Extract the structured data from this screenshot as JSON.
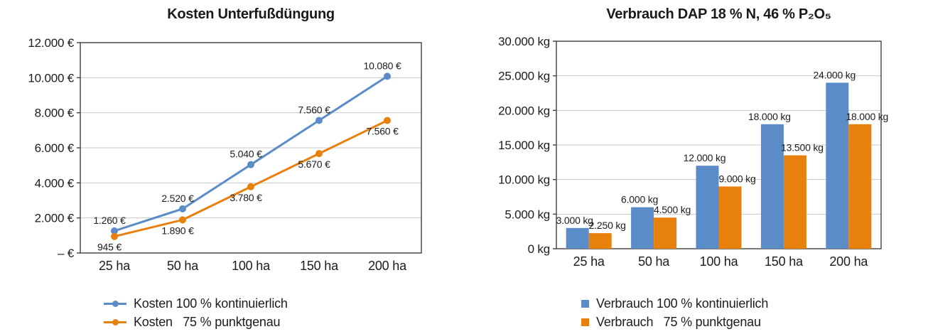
{
  "colors": {
    "blue": "#5b8cc8",
    "orange": "#e8800e",
    "grid": "#c8c8c8",
    "axis": "#404040",
    "text": "#1c1c1c"
  },
  "chart_data": [
    {
      "id": "kosten-unterfussduengung",
      "type": "line",
      "title": "Kosten Unterfußdüngung",
      "categories": [
        "25 ha",
        "50 ha",
        "100 ha",
        "150 ha",
        "200 ha"
      ],
      "series": [
        {
          "name": "Kosten 100 % kontinuierlich",
          "color_key": "blue",
          "values": [
            1260,
            2520,
            5040,
            7560,
            10080
          ],
          "labels": [
            "1.260 €",
            "2.520 €",
            "5.040 €",
            "7.560 €",
            "10.080 €"
          ]
        },
        {
          "name": "Kosten   75 % punktgenau",
          "color_key": "orange",
          "values": [
            945,
            1890,
            3780,
            5670,
            7560
          ],
          "labels": [
            "945 €",
            "1.890 €",
            "3.780 €",
            "5.670 €",
            "7.560 €"
          ]
        }
      ],
      "xlabel": "",
      "ylabel": "",
      "ylim": [
        0,
        12000
      ],
      "ytick_step": 2000,
      "ytick_labels": [
        "– €",
        "2.000 €",
        "4.000 €",
        "6.000 €",
        "8.000 €",
        "10.000 €",
        "12.000 €"
      ],
      "grid": true,
      "legend_position": "bottom-left"
    },
    {
      "id": "verbrauch-dap",
      "type": "bar",
      "title": "Verbrauch DAP 18 % N, 46 % P₂O₅",
      "categories": [
        "25 ha",
        "50 ha",
        "100 ha",
        "150 ha",
        "200 ha"
      ],
      "series": [
        {
          "name": "Verbrauch 100 % kontinuierlich",
          "color_key": "blue",
          "values": [
            3000,
            6000,
            12000,
            18000,
            24000
          ],
          "labels": [
            "3.000 kg",
            "6.000 kg",
            "12.000 kg",
            "18.000 kg",
            "24.000 kg"
          ]
        },
        {
          "name": "Verbrauch   75 % punktgenau",
          "color_key": "orange",
          "values": [
            2250,
            4500,
            9000,
            13500,
            18000
          ],
          "labels": [
            "2.250 kg",
            "4.500 kg",
            "9.000 kg",
            "13.500 kg",
            "18.000 kg"
          ]
        }
      ],
      "xlabel": "",
      "ylabel": "",
      "ylim": [
        0,
        30000
      ],
      "ytick_step": 5000,
      "ytick_labels": [
        "0 kg",
        "5.000 kg",
        "10.000 kg",
        "15.000 kg",
        "20.000 kg",
        "25.000 kg",
        "30.000 kg"
      ],
      "grid": true,
      "legend_position": "bottom-left"
    }
  ]
}
